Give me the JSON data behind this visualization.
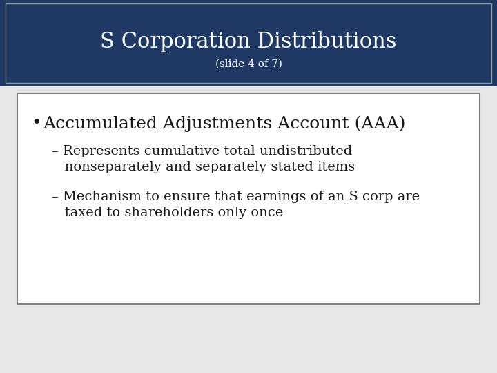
{
  "title_line1": "S Corporation Distributions",
  "title_line2": "(slide 4 of 7)",
  "header_bg_color": "#1F3864",
  "header_text_color": "#FFFFFF",
  "slide_bg_color": "#E8E8E8",
  "content_bg_color": "#FFFFFF",
  "content_border_color": "#808080",
  "bullet_text": "Accumulated Adjustments Account (AAA)",
  "sub_bullet1_line1": "– Represents cumulative total undistributed",
  "sub_bullet1_line2": "   nonseparately and separately stated items",
  "sub_bullet2_line1": "– Mechanism to ensure that earnings of an S corp are",
  "sub_bullet2_line2": "   taxed to shareholders only once",
  "content_text_color": "#1a1a1a",
  "title_fontsize": 22,
  "subtitle_fontsize": 11,
  "bullet_fontsize": 18,
  "sub_bullet_fontsize": 14
}
